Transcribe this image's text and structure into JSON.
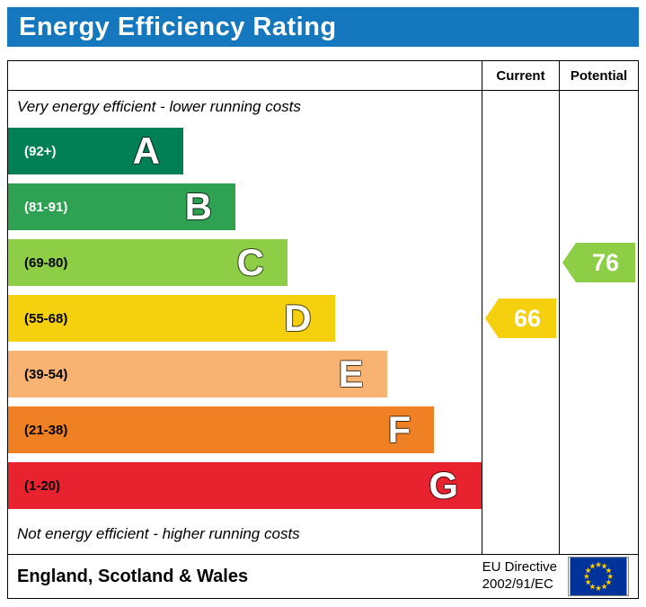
{
  "title": "Energy Efficiency Rating",
  "header": {
    "current": "Current",
    "potential": "Potential"
  },
  "chart": {
    "top_note": "Very energy efficient - lower running costs",
    "bottom_note": "Not energy efficient - higher running costs",
    "bands": [
      {
        "letter": "A",
        "range": "(92+)",
        "color": "#008054",
        "width_pct": 37,
        "label_color": "#ffffff"
      },
      {
        "letter": "B",
        "range": "(81-91)",
        "color": "#2ea152",
        "width_pct": 48,
        "label_color": "#ffffff"
      },
      {
        "letter": "C",
        "range": "(69-80)",
        "color": "#8dce46",
        "width_pct": 59,
        "label_color": "#000000"
      },
      {
        "letter": "D",
        "range": "(55-68)",
        "color": "#f5d00f",
        "width_pct": 69,
        "label_color": "#000000"
      },
      {
        "letter": "E",
        "range": "(39-54)",
        "color": "#f8b271",
        "width_pct": 80,
        "label_color": "#000000"
      },
      {
        "letter": "F",
        "range": "(21-38)",
        "color": "#ef8023",
        "width_pct": 90,
        "label_color": "#000000"
      },
      {
        "letter": "G",
        "range": "(1-20)",
        "color": "#e8232f",
        "width_pct": 100,
        "label_color": "#000000"
      }
    ]
  },
  "current": {
    "value": "66",
    "band": "D",
    "color": "#f5d00f"
  },
  "potential": {
    "value": "76",
    "band": "C",
    "color": "#8dce46"
  },
  "footer": {
    "region": "England, Scotland & Wales",
    "directive_line1": "EU Directive",
    "directive_line2": "2002/91/EC"
  },
  "colors": {
    "title_bg": "#1577bd",
    "flag_bg": "#003399",
    "flag_star": "#ffcc00",
    "border": "#000000"
  },
  "chart_data": {
    "type": "bar",
    "title": "Energy Efficiency Rating",
    "categories": [
      "A",
      "B",
      "C",
      "D",
      "E",
      "F",
      "G"
    ],
    "ranges": [
      "92+",
      "81-91",
      "69-80",
      "55-68",
      "39-54",
      "21-38",
      "1-20"
    ],
    "values": [
      37,
      48,
      59,
      69,
      80,
      90,
      100
    ],
    "markers": {
      "current": 66,
      "potential": 76
    },
    "orientation": "horizontal",
    "legend_position": "none"
  }
}
